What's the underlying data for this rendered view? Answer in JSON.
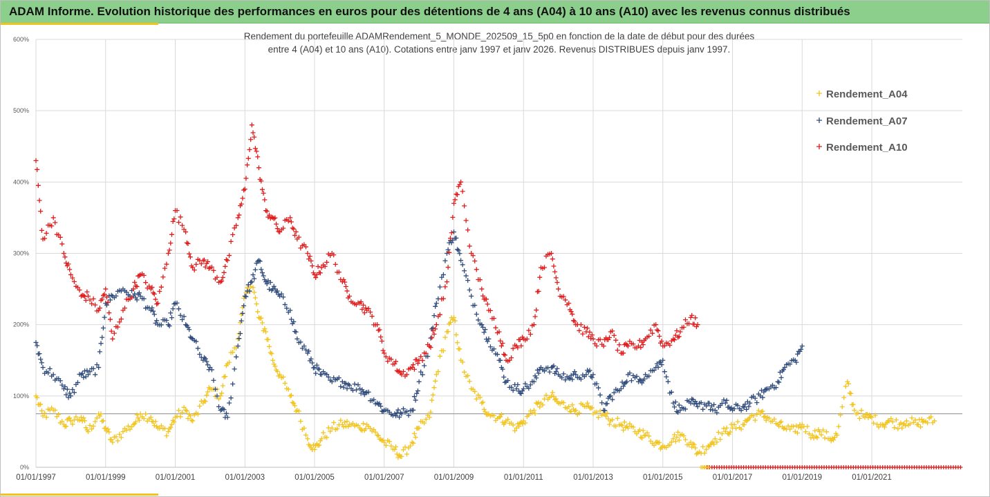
{
  "header": {
    "title": "ADAM Informe. Evolution historique des performances en euros pour des détentions de 4 ans (A04) à 10 ans (A10) avec les revenus connus distribués"
  },
  "colors": {
    "banner": "#8ccf8c",
    "accent": "#f2c31c",
    "A04": "#f2c31c",
    "A07": "#2e4a7a",
    "A10": "#e01b1b"
  },
  "chart_data": {
    "type": "scatter",
    "title_lines": [
      "Rendement du portefeuille ADAMRendement_5_MONDE_202509_15_5p0 en fonction de la date de début pour des durées",
      "entre 4 (A04) et 10 ans (A10). Cotations entre janv 1997 et janv 2026. Revenus DISTRIBUES depuis janv 1997."
    ],
    "x_tick_labels": [
      "01/01/1997",
      "01/01/1999",
      "01/01/2001",
      "01/01/2003",
      "01/01/2005",
      "01/01/2007",
      "01/01/2009",
      "01/01/2011",
      "01/01/2013",
      "01/01/2015",
      "01/01/2017",
      "01/01/2019",
      "01/01/2021"
    ],
    "y_tick_labels": [
      "0%",
      "100%",
      "200%",
      "300%",
      "400%",
      "500%",
      "600%"
    ],
    "xlim": [
      1997.0,
      2023.6
    ],
    "ylim": [
      0,
      600
    ],
    "grid": true,
    "legend_position": "top-right",
    "reference_line_y": 75,
    "series": [
      {
        "name": "Rendement_A04",
        "color": "#f2c31c",
        "x": [
          1997.0,
          1997.2,
          1997.5,
          1997.8,
          1998.0,
          1998.3,
          1998.5,
          1998.8,
          1999.0,
          1999.2,
          1999.5,
          1999.8,
          2000.0,
          2000.3,
          2000.5,
          2000.8,
          2001.0,
          2001.3,
          2001.5,
          2001.8,
          2002.0,
          2002.3,
          2002.5,
          2002.8,
          2003.0,
          2003.2,
          2003.4,
          2003.6,
          2003.8,
          2004.0,
          2004.3,
          2004.5,
          2004.8,
          2005.0,
          2005.2,
          2005.5,
          2005.8,
          2006.0,
          2006.3,
          2006.5,
          2006.8,
          2007.0,
          2007.3,
          2007.5,
          2007.8,
          2008.0,
          2008.3,
          2008.5,
          2008.8,
          2009.0,
          2009.2,
          2009.5,
          2009.8,
          2010.0,
          2010.3,
          2010.5,
          2010.8,
          2011.0,
          2011.3,
          2011.5,
          2011.8,
          2012.0,
          2012.3,
          2012.5,
          2012.8,
          2013.0,
          2013.3,
          2013.5,
          2013.8,
          2014.0,
          2014.3,
          2014.5,
          2014.8,
          2015.0,
          2015.3,
          2015.5,
          2015.8,
          2016.0,
          2016.3,
          2016.5,
          2016.8,
          2017.0,
          2017.3,
          2017.5,
          2017.8,
          2018.0,
          2018.3,
          2018.5,
          2018.8,
          2019.0,
          2019.3,
          2019.5,
          2019.8,
          2020.0,
          2020.3,
          2020.5,
          2020.8,
          2021.0,
          2021.3,
          2021.5,
          2021.8,
          2022.0,
          2022.3,
          2022.5,
          2022.8
        ],
        "y": [
          100,
          72,
          80,
          60,
          65,
          70,
          50,
          75,
          55,
          35,
          50,
          60,
          75,
          70,
          55,
          50,
          70,
          80,
          65,
          90,
          110,
          100,
          145,
          180,
          240,
          260,
          210,
          190,
          150,
          130,
          100,
          80,
          40,
          25,
          40,
          55,
          60,
          60,
          55,
          60,
          45,
          35,
          25,
          15,
          35,
          55,
          70,
          130,
          190,
          210,
          150,
          110,
          90,
          75,
          70,
          65,
          55,
          65,
          80,
          90,
          100,
          90,
          85,
          80,
          85,
          75,
          75,
          65,
          60,
          55,
          50,
          45,
          35,
          30,
          40,
          45,
          35,
          20,
          30,
          40,
          50,
          55,
          60,
          70,
          75,
          70,
          60,
          55,
          50,
          60,
          45,
          50,
          40,
          45,
          120,
          80,
          70,
          70,
          60,
          65,
          60,
          65,
          60,
          65,
          65
        ]
      },
      {
        "name": "Rendement_A07",
        "color": "#2e4a7a",
        "x": [
          1997.0,
          1997.2,
          1997.5,
          1997.8,
          1998.0,
          1998.3,
          1998.5,
          1998.8,
          1999.0,
          1999.2,
          1999.5,
          1999.8,
          2000.0,
          2000.3,
          2000.5,
          2000.8,
          2001.0,
          2001.3,
          2001.5,
          2001.8,
          2002.0,
          2002.3,
          2002.5,
          2002.8,
          2003.0,
          2003.2,
          2003.4,
          2003.6,
          2003.8,
          2004.0,
          2004.3,
          2004.5,
          2004.8,
          2005.0,
          2005.2,
          2005.5,
          2005.8,
          2006.0,
          2006.3,
          2006.5,
          2006.8,
          2007.0,
          2007.3,
          2007.5,
          2007.8,
          2008.0,
          2008.3,
          2008.5,
          2008.8,
          2009.0,
          2009.2,
          2009.5,
          2009.8,
          2010.0,
          2010.3,
          2010.5,
          2010.8,
          2011.0,
          2011.3,
          2011.5,
          2011.8,
          2012.0,
          2012.3,
          2012.5,
          2012.8,
          2013.0,
          2013.3,
          2013.5,
          2013.8,
          2014.0,
          2014.3,
          2014.5,
          2014.8,
          2015.0,
          2015.3,
          2015.5,
          2015.8,
          2016.0,
          2016.3,
          2016.5,
          2016.8,
          2017.0,
          2017.3,
          2017.5,
          2017.8,
          2018.0,
          2018.3,
          2018.5,
          2018.8,
          2019.0
        ],
        "y": [
          175,
          140,
          130,
          110,
          100,
          130,
          130,
          140,
          230,
          240,
          250,
          240,
          240,
          220,
          200,
          200,
          230,
          200,
          180,
          150,
          140,
          80,
          70,
          170,
          240,
          260,
          290,
          260,
          250,
          240,
          220,
          180,
          160,
          140,
          130,
          120,
          120,
          115,
          110,
          105,
          90,
          80,
          75,
          75,
          80,
          120,
          170,
          230,
          300,
          330,
          290,
          240,
          200,
          180,
          150,
          120,
          110,
          110,
          120,
          140,
          140,
          130,
          125,
          130,
          130,
          130,
          80,
          100,
          110,
          130,
          120,
          130,
          140,
          150,
          90,
          80,
          90,
          85,
          90,
          80,
          90,
          80,
          85,
          90,
          100,
          110,
          120,
          140,
          150,
          170
        ]
      },
      {
        "name": "Rendement_A10",
        "color": "#e01b1b",
        "x": [
          1997.0,
          1997.2,
          1997.5,
          1997.8,
          1998.0,
          1998.3,
          1998.5,
          1998.8,
          1999.0,
          1999.2,
          1999.5,
          1999.8,
          2000.0,
          2000.3,
          2000.5,
          2000.8,
          2001.0,
          2001.3,
          2001.5,
          2001.8,
          2002.0,
          2002.3,
          2002.5,
          2002.8,
          2003.0,
          2003.2,
          2003.4,
          2003.6,
          2003.8,
          2004.0,
          2004.3,
          2004.5,
          2004.8,
          2005.0,
          2005.2,
          2005.5,
          2005.8,
          2006.0,
          2006.3,
          2006.5,
          2006.8,
          2007.0,
          2007.3,
          2007.5,
          2007.8,
          2008.0,
          2008.3,
          2008.5,
          2008.8,
          2009.0,
          2009.2,
          2009.5,
          2009.8,
          2010.0,
          2010.3,
          2010.5,
          2010.8,
          2011.0,
          2011.3,
          2011.5,
          2011.8,
          2012.0,
          2012.3,
          2012.5,
          2012.8,
          2013.0,
          2013.3,
          2013.5,
          2013.8,
          2014.0,
          2014.3,
          2014.5,
          2014.8,
          2015.0,
          2015.3,
          2015.5,
          2015.8,
          2016.0
        ],
        "y": [
          430,
          320,
          350,
          300,
          270,
          240,
          240,
          220,
          250,
          180,
          220,
          250,
          270,
          250,
          230,
          300,
          360,
          330,
          280,
          290,
          280,
          260,
          290,
          350,
          390,
          480,
          420,
          360,
          350,
          330,
          350,
          320,
          300,
          270,
          280,
          300,
          260,
          240,
          230,
          220,
          200,
          160,
          145,
          130,
          140,
          150,
          170,
          200,
          260,
          370,
          400,
          300,
          250,
          220,
          190,
          150,
          170,
          180,
          200,
          280,
          300,
          250,
          230,
          200,
          190,
          180,
          170,
          190,
          160,
          170,
          170,
          180,
          200,
          170,
          180,
          190,
          210,
          200
        ]
      }
    ]
  },
  "legend": {
    "items": [
      {
        "label": "Rendement_A04",
        "color": "#f2c31c"
      },
      {
        "label": "Rendement_A07",
        "color": "#2e4a7a"
      },
      {
        "label": "Rendement_A10",
        "color": "#e01b1b"
      }
    ]
  }
}
